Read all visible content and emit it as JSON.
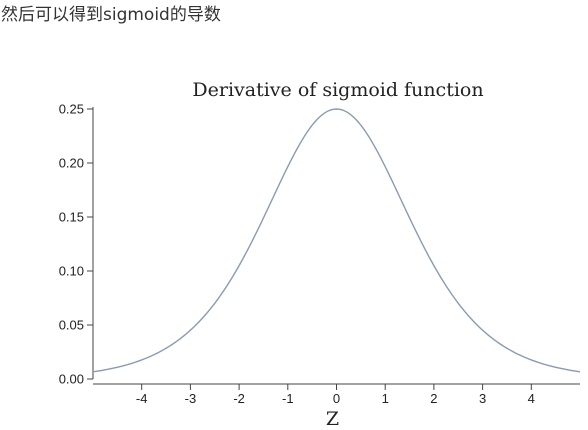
{
  "caption": "然后可以得到sigmoid的导数",
  "colors": {
    "curve": "#8a9bb0",
    "axis": "#444444",
    "text": "#222222"
  },
  "chart_data": {
    "type": "line",
    "title": "Derivative of sigmoid function",
    "xlabel": "Z",
    "ylabel": "",
    "function": "sigmoid(z) * (1 - sigmoid(z))",
    "xlim": [
      -5,
      5
    ],
    "ylim": [
      0,
      0.25
    ],
    "x_ticks": [
      -4,
      -3,
      -2,
      -1,
      0,
      1,
      2,
      3,
      4
    ],
    "x_tick_labels": [
      "-4",
      "-3",
      "-2",
      "-1",
      "0",
      "1",
      "2",
      "3",
      "4"
    ],
    "y_ticks": [
      0.0,
      0.05,
      0.1,
      0.15,
      0.2,
      0.25
    ],
    "y_tick_labels": [
      "0.00",
      "0.05",
      "0.10",
      "0.15",
      "0.20",
      "0.25"
    ],
    "grid": false,
    "legend": "none",
    "series": [
      {
        "x": [
          -5,
          -4.5,
          -4,
          -3.5,
          -3,
          -2.5,
          -2,
          -1.5,
          -1,
          -0.5,
          0,
          0.5,
          1,
          1.5,
          2,
          2.5,
          3,
          3.5,
          4,
          4.5,
          5
        ],
        "y": [
          0.0066,
          0.0109,
          0.0177,
          0.0285,
          0.0452,
          0.0701,
          0.105,
          0.1491,
          0.1966,
          0.235,
          0.25,
          0.235,
          0.1966,
          0.1491,
          0.105,
          0.0701,
          0.0452,
          0.0285,
          0.0177,
          0.0109,
          0.0066
        ]
      }
    ]
  }
}
